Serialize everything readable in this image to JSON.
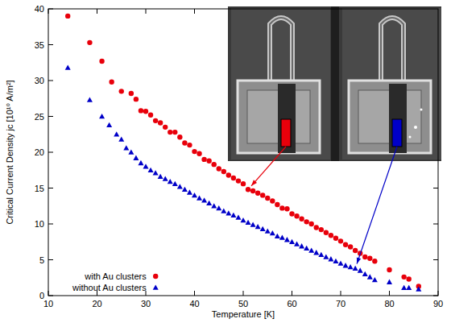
{
  "chart_data": {
    "type": "scatter",
    "x_label": "Temperature [K]",
    "y_label": "Critical Current Density jc [10¹⁰ A/m²]",
    "xlim": [
      10,
      90
    ],
    "xticks": [
      10,
      20,
      30,
      40,
      50,
      60,
      70,
      80,
      90
    ],
    "ylim": [
      0,
      40
    ],
    "yticks": [
      0,
      5,
      10,
      15,
      20,
      25,
      30,
      35,
      40
    ],
    "grid": false,
    "legend": "lower left",
    "series": [
      {
        "name": "with Au clusters",
        "color": "#e8000b",
        "marker": "circle",
        "x": [
          14,
          18.5,
          21,
          23,
          25,
          27,
          28,
          29,
          30,
          31,
          32,
          33,
          34,
          35,
          36,
          37,
          38,
          39,
          40,
          41,
          42,
          43,
          44,
          45,
          46,
          47,
          48,
          49,
          50,
          51,
          52,
          53,
          54,
          55,
          56,
          57,
          58,
          59,
          60,
          61,
          62,
          63,
          64,
          65,
          66,
          67,
          68,
          69,
          70,
          71,
          72,
          73,
          74,
          75,
          76,
          77,
          80,
          83,
          84,
          86
        ],
        "values": [
          39.0,
          35.3,
          32.7,
          29.8,
          28.5,
          28.2,
          27.4,
          25.8,
          25.7,
          25.2,
          24.4,
          24.1,
          23.5,
          22.8,
          22.8,
          22.1,
          21.3,
          21.0,
          20.1,
          19.8,
          19.0,
          18.8,
          18.3,
          17.7,
          17.3,
          16.8,
          16.4,
          16.0,
          15.6,
          14.8,
          14.6,
          14.3,
          14.0,
          13.6,
          13.2,
          12.7,
          12.2,
          12.1,
          11.4,
          11.1,
          10.7,
          10.3,
          10.0,
          9.5,
          9.2,
          8.8,
          8.4,
          8.0,
          7.6,
          7.1,
          6.8,
          6.3,
          5.9,
          5.4,
          5.2,
          4.8,
          3.6,
          2.6,
          2.3,
          1.3
        ]
      },
      {
        "name": "without Au clusters",
        "color": "#0000c8",
        "marker": "triangle",
        "x": [
          14,
          18.5,
          21,
          22.5,
          24,
          25,
          26,
          27,
          28,
          29,
          30,
          31,
          32,
          33,
          34,
          35,
          36,
          37,
          38,
          39,
          40,
          41,
          42,
          43,
          44,
          45,
          46,
          47,
          48,
          49,
          50,
          51,
          52,
          53,
          54,
          55,
          56,
          57,
          58,
          59,
          60,
          61,
          62,
          63,
          64,
          65,
          66,
          67,
          68,
          69,
          70,
          71,
          72,
          73,
          74,
          75,
          76,
          77,
          80,
          83,
          84,
          86
        ],
        "values": [
          31.8,
          27.3,
          25.0,
          23.8,
          22.5,
          21.8,
          20.6,
          20.0,
          19.2,
          18.5,
          18.0,
          17.5,
          17.1,
          16.6,
          16.3,
          15.9,
          15.6,
          15.2,
          14.8,
          14.4,
          14.0,
          13.6,
          13.3,
          12.9,
          12.5,
          12.2,
          11.8,
          11.5,
          11.2,
          10.9,
          10.5,
          10.2,
          9.9,
          9.6,
          9.3,
          9.0,
          8.7,
          8.3,
          8.1,
          7.8,
          7.5,
          7.2,
          6.9,
          6.6,
          6.3,
          6.0,
          5.7,
          5.4,
          5.1,
          4.8,
          4.5,
          4.2,
          4.0,
          3.8,
          3.5,
          3.0,
          2.6,
          2.2,
          1.9,
          1.1,
          1.1,
          0.9
        ]
      }
    ]
  }
}
